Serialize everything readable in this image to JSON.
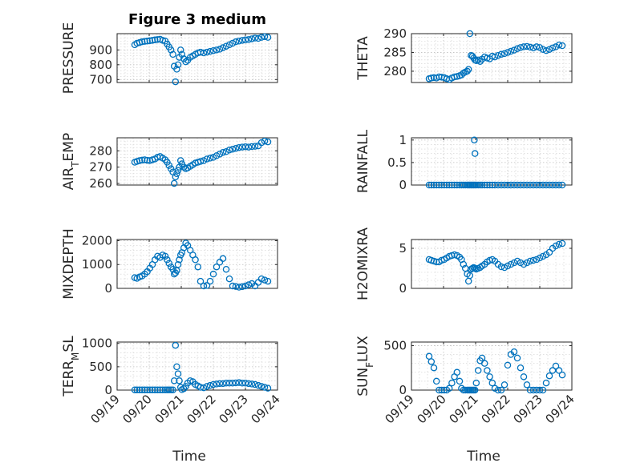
{
  "figure": {
    "title": "Figure 3 medium",
    "xlabel": "Time",
    "marker_color": "#0072BD"
  },
  "chart_data": [
    {
      "type": "scatter",
      "ylabel": "PRESSURE",
      "ylim": [
        680,
        1010
      ],
      "yticks": [
        700,
        800,
        900
      ],
      "xlim": [
        0,
        5
      ],
      "x": [
        0.55,
        0.62,
        0.7,
        0.78,
        0.86,
        0.94,
        1.02,
        1.1,
        1.18,
        1.26,
        1.34,
        1.42,
        1.5,
        1.56,
        1.62,
        1.68,
        1.74,
        1.78,
        1.82,
        1.86,
        1.9,
        1.94,
        1.98,
        2.02,
        2.08,
        2.14,
        2.2,
        2.28,
        2.36,
        2.44,
        2.52,
        2.6,
        2.7,
        2.8,
        2.9,
        3.0,
        3.1,
        3.2,
        3.3,
        3.4,
        3.5,
        3.6,
        3.7,
        3.8,
        3.9,
        4.0,
        4.1,
        4.2,
        4.3,
        4.4,
        4.5,
        4.6,
        4.7
      ],
      "y": [
        935,
        945,
        950,
        955,
        958,
        960,
        962,
        965,
        968,
        970,
        972,
        965,
        960,
        940,
        920,
        900,
        870,
        790,
        685,
        770,
        800,
        850,
        900,
        870,
        840,
        820,
        830,
        850,
        860,
        870,
        880,
        885,
        880,
        885,
        890,
        895,
        900,
        905,
        915,
        925,
        935,
        945,
        955,
        960,
        965,
        968,
        970,
        975,
        980,
        978,
        985,
        990,
        985
      ]
    },
    {
      "type": "scatter",
      "ylabel": "THETA",
      "ylim": [
        277,
        290
      ],
      "yticks": [
        280,
        285,
        290
      ],
      "xlim": [
        0,
        5
      ],
      "x": [
        0.55,
        0.62,
        0.7,
        0.78,
        0.86,
        0.94,
        1.02,
        1.1,
        1.18,
        1.26,
        1.34,
        1.42,
        1.5,
        1.56,
        1.62,
        1.68,
        1.74,
        1.78,
        1.82,
        1.86,
        1.9,
        1.94,
        1.98,
        2.02,
        2.08,
        2.14,
        2.2,
        2.28,
        2.36,
        2.44,
        2.52,
        2.6,
        2.7,
        2.8,
        2.9,
        3.0,
        3.1,
        3.2,
        3.3,
        3.4,
        3.5,
        3.6,
        3.7,
        3.8,
        3.9,
        4.0,
        4.1,
        4.2,
        4.3,
        4.4,
        4.5,
        4.6,
        4.7
      ],
      "y": [
        278,
        278.2,
        278.3,
        278.2,
        278.5,
        278.4,
        278.3,
        278,
        277.8,
        278.2,
        278.5,
        278.6,
        278.8,
        279,
        279.5,
        279.8,
        280,
        280.5,
        290,
        284.2,
        284,
        283.5,
        283,
        282.8,
        283,
        282.6,
        283.2,
        283.8,
        283.5,
        283.3,
        284,
        283.8,
        284.2,
        284.5,
        284.7,
        285,
        285.3,
        285.6,
        286,
        286.3,
        286.5,
        286.6,
        286.4,
        286.2,
        286.5,
        286.3,
        285.8,
        285.5,
        285.8,
        286.2,
        286.5,
        287,
        286.8
      ]
    },
    {
      "type": "scatter",
      "ylabel": "AIR_TEMP",
      "ylim": [
        259,
        288
      ],
      "yticks": [
        260,
        270,
        280
      ],
      "xlim": [
        0,
        5
      ],
      "x": [
        0.55,
        0.62,
        0.7,
        0.78,
        0.86,
        0.94,
        1.02,
        1.1,
        1.18,
        1.26,
        1.34,
        1.42,
        1.5,
        1.56,
        1.62,
        1.68,
        1.74,
        1.78,
        1.82,
        1.86,
        1.9,
        1.94,
        1.98,
        2.02,
        2.08,
        2.14,
        2.2,
        2.28,
        2.36,
        2.44,
        2.52,
        2.6,
        2.7,
        2.8,
        2.9,
        3.0,
        3.1,
        3.2,
        3.3,
        3.4,
        3.5,
        3.6,
        3.7,
        3.8,
        3.9,
        4.0,
        4.1,
        4.2,
        4.3,
        4.4,
        4.5,
        4.6,
        4.7
      ],
      "y": [
        273,
        273.5,
        274,
        274.3,
        274.5,
        274.2,
        274,
        274.5,
        275,
        276,
        276.5,
        275.5,
        274.5,
        273,
        271,
        269,
        267,
        260,
        264,
        266,
        268,
        270,
        274,
        272,
        270,
        269,
        269.5,
        270.5,
        271.5,
        272.5,
        273,
        273.5,
        274,
        275,
        275.5,
        276,
        277,
        278,
        279,
        279.5,
        280.5,
        281,
        281.5,
        282,
        282.3,
        282.5,
        282.3,
        282.6,
        282.8,
        283,
        285,
        286,
        285.5
      ]
    },
    {
      "type": "scatter",
      "ylabel": "RAINFALL",
      "ylim": [
        0,
        1.05
      ],
      "yticks": [
        0,
        0.5,
        1
      ],
      "xlim": [
        0,
        5
      ],
      "x": [
        0.55,
        0.62,
        0.7,
        0.78,
        0.86,
        0.94,
        1.02,
        1.1,
        1.18,
        1.26,
        1.34,
        1.42,
        1.5,
        1.56,
        1.62,
        1.68,
        1.74,
        1.78,
        1.82,
        1.86,
        1.9,
        1.94,
        1.98,
        2.02,
        2.08,
        2.14,
        2.2,
        2.28,
        2.36,
        2.44,
        2.52,
        2.6,
        2.7,
        2.8,
        2.9,
        3.0,
        3.1,
        3.2,
        3.3,
        3.4,
        3.5,
        3.6,
        3.7,
        3.8,
        3.9,
        4.0,
        4.1,
        4.2,
        4.3,
        4.4,
        4.5,
        4.6,
        4.7,
        1.96,
        1.98
      ],
      "y": [
        0,
        0,
        0,
        0,
        0,
        0,
        0,
        0,
        0,
        0,
        0,
        0,
        0,
        0,
        0,
        0,
        0,
        0,
        0,
        0,
        0,
        0,
        0,
        0,
        0,
        0,
        0,
        0,
        0,
        0,
        0,
        0,
        0,
        0,
        0,
        0,
        0,
        0,
        0,
        0,
        0,
        0,
        0,
        0,
        0,
        0,
        0,
        0,
        0,
        0,
        0,
        0,
        0,
        1,
        0.7
      ]
    },
    {
      "type": "scatter",
      "ylabel": "MIXDEPTH",
      "ylim": [
        0,
        2050
      ],
      "yticks": [
        0,
        1000,
        2000
      ],
      "xlim": [
        0,
        5
      ],
      "x": [
        0.55,
        0.62,
        0.7,
        0.78,
        0.86,
        0.94,
        1.02,
        1.1,
        1.18,
        1.26,
        1.34,
        1.42,
        1.5,
        1.56,
        1.62,
        1.68,
        1.74,
        1.78,
        1.82,
        1.86,
        1.9,
        1.94,
        1.98,
        2.02,
        2.08,
        2.14,
        2.2,
        2.28,
        2.36,
        2.44,
        2.52,
        2.6,
        2.7,
        2.8,
        2.9,
        3.0,
        3.1,
        3.2,
        3.3,
        3.4,
        3.5,
        3.6,
        3.7,
        3.8,
        3.9,
        4.0,
        4.1,
        4.2,
        4.3,
        4.4,
        4.5,
        4.6,
        4.7
      ],
      "y": [
        450,
        420,
        480,
        520,
        600,
        700,
        850,
        1000,
        1200,
        1350,
        1300,
        1400,
        1350,
        1200,
        1050,
        900,
        800,
        600,
        650,
        750,
        1000,
        1200,
        1400,
        1500,
        1700,
        1900,
        1800,
        1600,
        1400,
        1200,
        900,
        300,
        100,
        120,
        300,
        600,
        900,
        1100,
        1250,
        800,
        400,
        100,
        80,
        50,
        70,
        100,
        150,
        200,
        100,
        250,
        400,
        350,
        300
      ]
    },
    {
      "type": "scatter",
      "ylabel": "H2OMIXRA",
      "ylim": [
        0,
        6.1
      ],
      "yticks": [
        0,
        5
      ],
      "xlim": [
        0,
        5
      ],
      "x": [
        0.55,
        0.62,
        0.7,
        0.78,
        0.86,
        0.94,
        1.02,
        1.1,
        1.18,
        1.26,
        1.34,
        1.42,
        1.5,
        1.56,
        1.62,
        1.68,
        1.74,
        1.78,
        1.82,
        1.86,
        1.9,
        1.94,
        1.98,
        2.02,
        2.08,
        2.14,
        2.2,
        2.28,
        2.36,
        2.44,
        2.52,
        2.6,
        2.7,
        2.8,
        2.9,
        3.0,
        3.1,
        3.2,
        3.3,
        3.4,
        3.5,
        3.6,
        3.7,
        3.8,
        3.9,
        4.0,
        4.1,
        4.2,
        4.3,
        4.4,
        4.5,
        4.6,
        4.7
      ],
      "y": [
        3.6,
        3.5,
        3.4,
        3.3,
        3.3,
        3.5,
        3.6,
        3.8,
        4.0,
        4.1,
        4.2,
        4.1,
        3.9,
        3.6,
        3.0,
        2.5,
        1.8,
        0.9,
        1.6,
        2.4,
        2.5,
        2.6,
        2.5,
        2.4,
        2.5,
        2.6,
        2.8,
        3.0,
        3.3,
        3.5,
        3.6,
        3.4,
        3.0,
        2.7,
        2.6,
        2.8,
        3.0,
        3.2,
        3.4,
        3.2,
        3.0,
        3.2,
        3.4,
        3.5,
        3.6,
        3.8,
        4.0,
        4.2,
        4.5,
        5.0,
        5.3,
        5.5,
        5.6
      ]
    },
    {
      "type": "scatter",
      "ylabel": "TERR_MSL",
      "ylim": [
        0,
        1030
      ],
      "yticks": [
        0,
        500,
        1000
      ],
      "xlim": [
        0,
        5
      ],
      "xticks": [
        "09/19",
        "09/20",
        "09/21",
        "09/22",
        "09/23",
        "09/24"
      ],
      "x": [
        0.55,
        0.62,
        0.7,
        0.78,
        0.86,
        0.94,
        1.02,
        1.1,
        1.18,
        1.26,
        1.34,
        1.42,
        1.5,
        1.56,
        1.62,
        1.68,
        1.74,
        1.78,
        1.82,
        1.86,
        1.9,
        1.94,
        1.98,
        2.02,
        2.08,
        2.14,
        2.2,
        2.28,
        2.36,
        2.44,
        2.52,
        2.6,
        2.7,
        2.8,
        2.9,
        3.0,
        3.1,
        3.2,
        3.3,
        3.4,
        3.5,
        3.6,
        3.7,
        3.8,
        3.9,
        4.0,
        4.1,
        4.2,
        4.3,
        4.4,
        4.5,
        4.6,
        4.7
      ],
      "y": [
        5,
        5,
        5,
        5,
        5,
        5,
        5,
        5,
        5,
        5,
        5,
        5,
        5,
        5,
        5,
        5,
        5,
        200,
        960,
        500,
        350,
        200,
        60,
        10,
        30,
        80,
        150,
        200,
        180,
        120,
        90,
        60,
        50,
        80,
        100,
        120,
        130,
        140,
        140,
        150,
        150,
        150,
        155,
        160,
        150,
        150,
        140,
        130,
        120,
        100,
        80,
        60,
        40
      ]
    },
    {
      "type": "scatter",
      "ylabel": "SUN_FLUX",
      "ylim": [
        0,
        540
      ],
      "yticks": [
        0,
        500
      ],
      "xlim": [
        0,
        5
      ],
      "xticks": [
        "09/19",
        "09/20",
        "09/21",
        "09/22",
        "09/23",
        "09/24"
      ],
      "x": [
        0.55,
        0.62,
        0.7,
        0.78,
        0.86,
        0.94,
        1.02,
        1.1,
        1.18,
        1.26,
        1.34,
        1.42,
        1.5,
        1.56,
        1.62,
        1.68,
        1.74,
        1.78,
        1.82,
        1.86,
        1.9,
        1.94,
        1.98,
        2.02,
        2.08,
        2.14,
        2.2,
        2.28,
        2.36,
        2.44,
        2.52,
        2.6,
        2.7,
        2.8,
        2.9,
        3.0,
        3.1,
        3.2,
        3.3,
        3.4,
        3.5,
        3.6,
        3.7,
        3.8,
        3.9,
        4.0,
        4.1,
        4.2,
        4.3,
        4.4,
        4.5,
        4.6,
        4.7
      ],
      "y": [
        380,
        320,
        250,
        100,
        0,
        0,
        0,
        0,
        20,
        80,
        150,
        200,
        100,
        20,
        0,
        0,
        0,
        0,
        0,
        0,
        0,
        0,
        0,
        80,
        220,
        330,
        360,
        300,
        220,
        150,
        80,
        20,
        0,
        0,
        60,
        280,
        400,
        430,
        360,
        250,
        150,
        60,
        0,
        0,
        0,
        0,
        0,
        80,
        160,
        220,
        270,
        220,
        170
      ]
    }
  ]
}
